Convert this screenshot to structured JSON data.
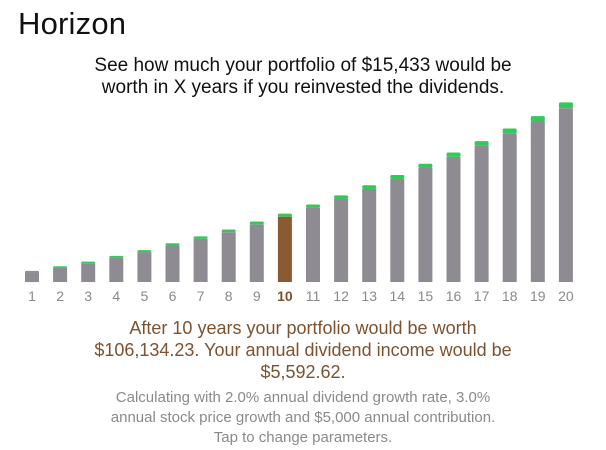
{
  "header": {
    "title": "Horizon",
    "subtitle_line1": "See how much your portfolio of $15,433 would be",
    "subtitle_line2": "worth in X years if you reinvested the dividends."
  },
  "colors": {
    "price_bar": "#8e8c92",
    "dividend_top": "#34c759",
    "selected_bar": "#8a5a32",
    "accent_text": "#7d5230",
    "muted_text": "#8a8a8a"
  },
  "chart_data": {
    "type": "bar",
    "categories": [
      "1",
      "2",
      "3",
      "4",
      "5",
      "6",
      "7",
      "8",
      "9",
      "10",
      "11",
      "12",
      "13",
      "14",
      "15",
      "16",
      "17",
      "18",
      "19",
      "20"
    ],
    "selected_category": "10",
    "series": [
      {
        "values": [
          4.5,
          6.5,
          8.5,
          11.0,
          13.5,
          16.5,
          19.5,
          22.5,
          26.0,
          29.5,
          33.5,
          37.5,
          42.0,
          46.5,
          51.5,
          56.5,
          61.5,
          67.0,
          72.5,
          78.5
        ]
      },
      {
        "values": [
          0.5,
          0.6,
          0.7,
          0.8,
          0.9,
          1.0,
          1.1,
          1.2,
          1.3,
          1.4,
          1.5,
          1.6,
          1.7,
          1.8,
          1.9,
          2.0,
          2.1,
          2.3,
          2.4,
          2.6
        ]
      }
    ],
    "ylim": [
      0,
      84
    ],
    "stacked": true,
    "grid": false
  },
  "result": {
    "line1": "After 10 years your portfolio would be worth",
    "line2": "$106,134.23. Your annual dividend income would be",
    "line3": "$5,592.62."
  },
  "params": {
    "line1": "Calculating with 2.0% annual dividend growth rate, 3.0%",
    "line2": "annual stock price growth and $5,000 annual contribution.",
    "line3": "Tap to change parameters."
  }
}
